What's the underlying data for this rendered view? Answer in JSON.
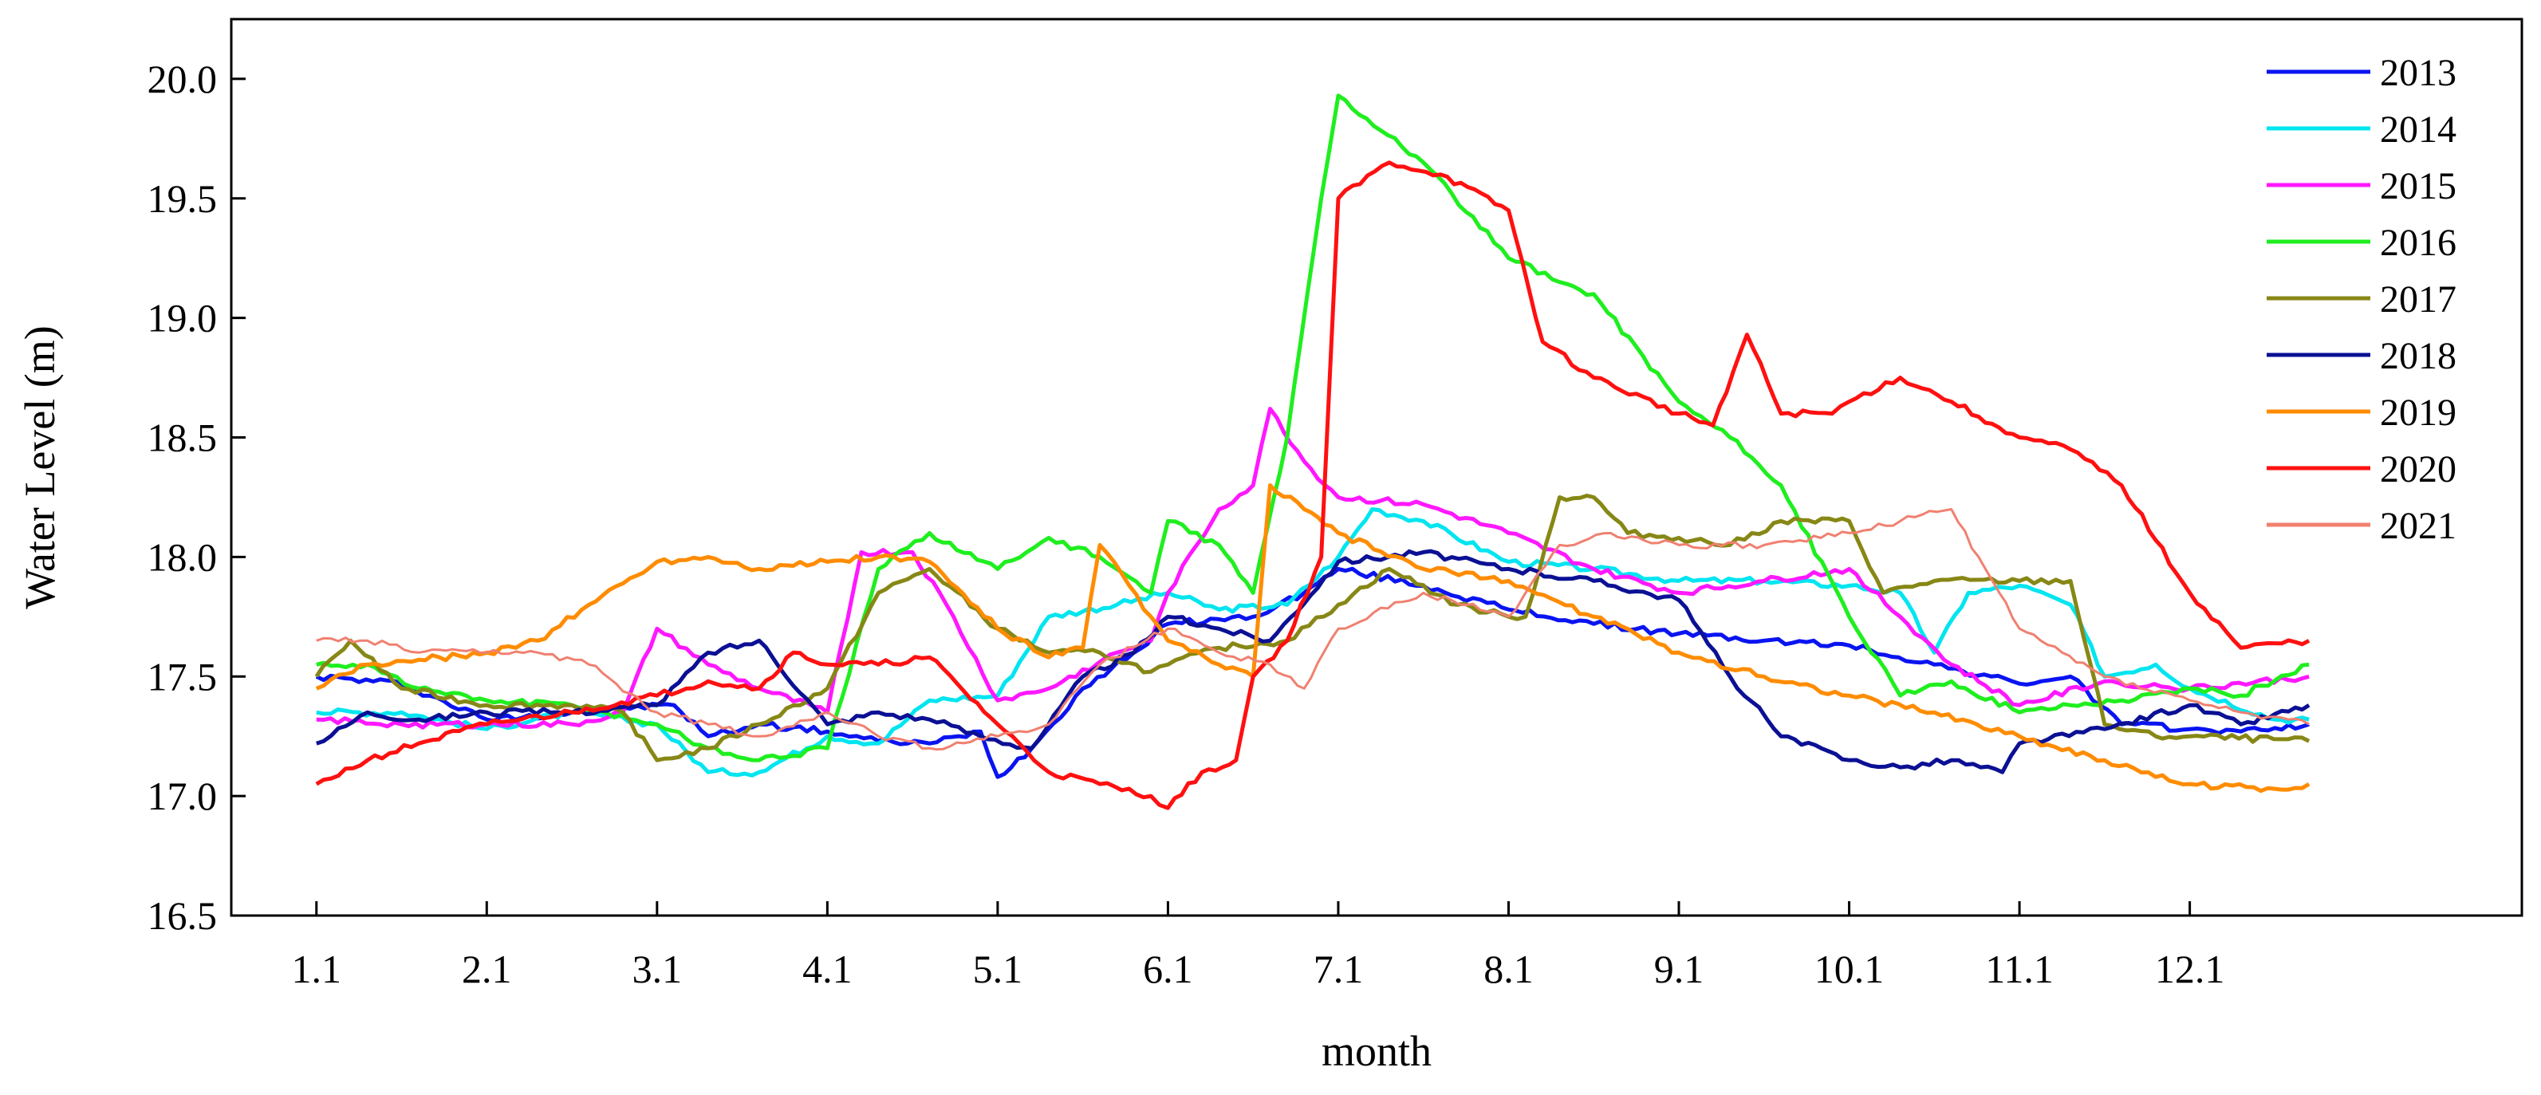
{
  "chart_data": {
    "type": "line",
    "title": "",
    "xlabel": "month",
    "ylabel": "Water Level (m)",
    "x_ticks": [
      "1.1",
      "2.1",
      "3.1",
      "4.1",
      "5.1",
      "6.1",
      "7.1",
      "8.1",
      "9.1",
      "10.1",
      "11.1",
      "12.1"
    ],
    "xlim": [
      0.5,
      13.95
    ],
    "ylim": [
      16.5,
      20.25
    ],
    "y_ticks": [
      "16.5",
      "17.0",
      "17.5",
      "18.0",
      "18.5",
      "19.0",
      "19.5",
      "20.0"
    ],
    "y_tick_values": [
      16.5,
      17.0,
      17.5,
      18.0,
      18.5,
      19.0,
      19.5,
      20.0
    ],
    "legend_position": "top-right",
    "series": [
      {
        "name": "2013",
        "color": "#0a14f0",
        "x": [
          1,
          1.5,
          2,
          2.5,
          2.8,
          3.1,
          3.3,
          3.6,
          4,
          4.3,
          4.6,
          4.9,
          5,
          5.2,
          5.5,
          5.8,
          6,
          6.5,
          6.8,
          7,
          7.5,
          8,
          8.5,
          9,
          9.5,
          10,
          10.5,
          11,
          11.3,
          11.6,
          12,
          12.3,
          12.7
        ],
        "y": [
          17.5,
          17.47,
          17.32,
          17.35,
          17.37,
          17.38,
          17.25,
          17.3,
          17.27,
          17.23,
          17.22,
          17.27,
          17.08,
          17.2,
          17.45,
          17.6,
          17.72,
          17.75,
          17.85,
          17.95,
          17.88,
          17.78,
          17.72,
          17.68,
          17.65,
          17.63,
          17.55,
          17.47,
          17.5,
          17.3,
          17.28,
          17.27,
          17.3
        ]
      },
      {
        "name": "2014",
        "color": "#00e5f0",
        "x": [
          1,
          1.5,
          2,
          2.5,
          3,
          3.3,
          3.6,
          4,
          4.3,
          4.6,
          5,
          5.3,
          5.7,
          6,
          6.3,
          6.7,
          7,
          7.2,
          7.5,
          8,
          8.5,
          9,
          9.5,
          10,
          10.3,
          10.5,
          10.7,
          11,
          11.3,
          11.5,
          11.8,
          12,
          12.5,
          12.7
        ],
        "y": [
          17.35,
          17.35,
          17.28,
          17.35,
          17.3,
          17.1,
          17.1,
          17.25,
          17.22,
          17.4,
          17.42,
          17.75,
          17.8,
          17.85,
          17.78,
          17.8,
          18.0,
          18.2,
          18.15,
          17.98,
          17.95,
          17.9,
          17.9,
          17.88,
          17.85,
          17.6,
          17.85,
          17.88,
          17.8,
          17.5,
          17.55,
          17.45,
          17.32,
          17.32
        ]
      },
      {
        "name": "2015",
        "color": "#ff18ff",
        "x": [
          1,
          1.5,
          2,
          2.5,
          2.8,
          3,
          3.3,
          3.6,
          4,
          4.2,
          4.5,
          4.7,
          5,
          5.3,
          5.7,
          5.9,
          6,
          6.3,
          6.5,
          6.6,
          6.8,
          7,
          7.5,
          8,
          8.5,
          9,
          9.5,
          10,
          10.3,
          10.6,
          11,
          11.5,
          12,
          12.7
        ],
        "y": [
          17.32,
          17.3,
          17.3,
          17.3,
          17.35,
          17.7,
          17.55,
          17.45,
          17.35,
          18.02,
          18.02,
          17.8,
          17.4,
          17.45,
          17.6,
          17.65,
          17.85,
          18.2,
          18.3,
          18.62,
          18.4,
          18.25,
          18.22,
          18.1,
          17.95,
          17.85,
          17.9,
          17.95,
          17.75,
          17.55,
          17.38,
          17.48,
          17.45,
          17.5
        ]
      },
      {
        "name": "2016",
        "color": "#1fee1f",
        "x": [
          1,
          1.3,
          1.6,
          2,
          2.5,
          3,
          3.3,
          3.6,
          4,
          4.3,
          4.6,
          5,
          5.3,
          5.6,
          5.9,
          6,
          6.3,
          6.5,
          6.7,
          6.9,
          7,
          7.5,
          8,
          8.3,
          8.5,
          9,
          9.3,
          9.6,
          10,
          10.3,
          10.6,
          11,
          11.3,
          11.6,
          12,
          12.3,
          12.7
        ],
        "y": [
          17.55,
          17.55,
          17.45,
          17.4,
          17.38,
          17.3,
          17.2,
          17.15,
          17.2,
          17.95,
          18.1,
          17.95,
          18.08,
          18.0,
          17.85,
          18.15,
          18.05,
          17.85,
          18.5,
          19.5,
          19.93,
          19.65,
          19.25,
          19.15,
          19.1,
          18.65,
          18.5,
          18.3,
          17.75,
          17.42,
          17.48,
          17.35,
          17.38,
          17.4,
          17.45,
          17.42,
          17.55
        ]
      },
      {
        "name": "2017",
        "color": "#878716",
        "x": [
          1,
          1.2,
          1.5,
          2,
          2.5,
          2.8,
          3,
          3.3,
          3.6,
          4,
          4.3,
          4.6,
          5,
          5.3,
          5.6,
          5.9,
          6,
          6.3,
          6.7,
          7,
          7.3,
          7.7,
          8,
          8.1,
          8.3,
          8.5,
          8.7,
          9,
          9.3,
          9.6,
          10,
          10.2,
          10.5,
          11,
          11.3,
          11.5,
          11.8,
          12,
          12.7
        ],
        "y": [
          17.5,
          17.65,
          17.45,
          17.38,
          17.38,
          17.35,
          17.15,
          17.2,
          17.3,
          17.45,
          17.85,
          17.95,
          17.7,
          17.6,
          17.6,
          17.52,
          17.55,
          17.62,
          17.65,
          17.8,
          17.95,
          17.8,
          17.75,
          17.75,
          18.25,
          18.25,
          18.1,
          18.08,
          18.05,
          18.15,
          18.15,
          17.85,
          17.9,
          17.9,
          17.9,
          17.3,
          17.25,
          17.25,
          17.23
        ]
      },
      {
        "name": "2018",
        "color": "#0b1094",
        "x": [
          1,
          1.3,
          1.6,
          2,
          2.5,
          3,
          3.3,
          3.6,
          4,
          4.3,
          4.6,
          4.9,
          5.2,
          5.5,
          5.8,
          6,
          6.3,
          6.6,
          7,
          7.5,
          8,
          8.5,
          9,
          9.3,
          9.6,
          10,
          10.3,
          10.6,
          10.9,
          11,
          11.5,
          12,
          12.3,
          12.7
        ],
        "y": [
          17.22,
          17.35,
          17.32,
          17.35,
          17.35,
          17.38,
          17.6,
          17.65,
          17.3,
          17.35,
          17.32,
          17.25,
          17.2,
          17.5,
          17.6,
          17.75,
          17.7,
          17.65,
          17.98,
          18.02,
          17.95,
          17.9,
          17.82,
          17.5,
          17.25,
          17.15,
          17.12,
          17.15,
          17.1,
          17.22,
          17.28,
          17.38,
          17.3,
          17.38
        ]
      },
      {
        "name": "2019",
        "color": "#ff8c00",
        "x": [
          1,
          1.3,
          1.6,
          2,
          2.3,
          2.6,
          3,
          3.3,
          3.6,
          4,
          4.3,
          4.6,
          5,
          5.3,
          5.5,
          5.6,
          5.9,
          6,
          6.3,
          6.5,
          6.6,
          6.8,
          7,
          7.5,
          8,
          8.5,
          9,
          9.5,
          10,
          10.5,
          11,
          11.5,
          11.8,
          12,
          12.5,
          12.7
        ],
        "y": [
          17.45,
          17.55,
          17.57,
          17.6,
          17.65,
          17.8,
          17.98,
          18.0,
          17.95,
          17.98,
          18.0,
          17.98,
          17.7,
          17.58,
          17.62,
          18.05,
          17.75,
          17.65,
          17.55,
          17.5,
          18.3,
          18.2,
          18.1,
          17.95,
          17.9,
          17.75,
          17.6,
          17.5,
          17.42,
          17.35,
          17.25,
          17.15,
          17.08,
          17.05,
          17.03,
          17.05
        ]
      },
      {
        "name": "2020",
        "color": "#ff1010",
        "x": [
          1,
          1.3,
          1.6,
          2,
          2.5,
          3,
          3.3,
          3.6,
          3.8,
          4,
          4.3,
          4.6,
          5,
          5.3,
          5.6,
          5.9,
          6,
          6.2,
          6.4,
          6.5,
          6.7,
          6.9,
          7,
          7.3,
          7.6,
          8,
          8.2,
          8.5,
          9,
          9.2,
          9.4,
          9.6,
          9.9,
          10,
          10.3,
          10.6,
          11,
          11.3,
          11.6,
          12,
          12.3,
          12.7
        ],
        "y": [
          17.05,
          17.15,
          17.22,
          17.3,
          17.35,
          17.42,
          17.48,
          17.45,
          17.6,
          17.55,
          17.55,
          17.58,
          17.3,
          17.1,
          17.05,
          17.0,
          16.95,
          17.1,
          17.15,
          17.5,
          17.65,
          18.0,
          19.5,
          19.65,
          19.6,
          19.45,
          18.9,
          18.75,
          18.6,
          18.55,
          18.93,
          18.6,
          18.6,
          18.65,
          18.75,
          18.65,
          18.5,
          18.45,
          18.3,
          17.85,
          17.62,
          17.65
        ]
      },
      {
        "name": "2021",
        "color": "#f08070",
        "x": [
          1,
          1.3,
          1.6,
          2,
          2.3,
          2.6,
          3,
          3.3,
          3.6,
          4,
          4.3,
          4.6,
          5,
          5.3,
          5.6,
          6,
          6.3,
          6.6,
          6.8,
          7,
          7.5,
          8,
          8.3,
          8.6,
          9,
          9.5,
          10,
          10.3,
          10.6,
          10.8,
          11,
          11.5,
          12,
          12.3,
          12.7
        ],
        "y": [
          17.65,
          17.65,
          17.6,
          17.6,
          17.6,
          17.55,
          17.35,
          17.3,
          17.25,
          17.35,
          17.25,
          17.2,
          17.25,
          17.3,
          17.55,
          17.7,
          17.6,
          17.55,
          17.45,
          17.7,
          17.85,
          17.75,
          18.05,
          18.1,
          18.05,
          18.05,
          18.1,
          18.15,
          18.2,
          17.95,
          17.7,
          17.5,
          17.4,
          17.35,
          17.3
        ]
      }
    ]
  }
}
